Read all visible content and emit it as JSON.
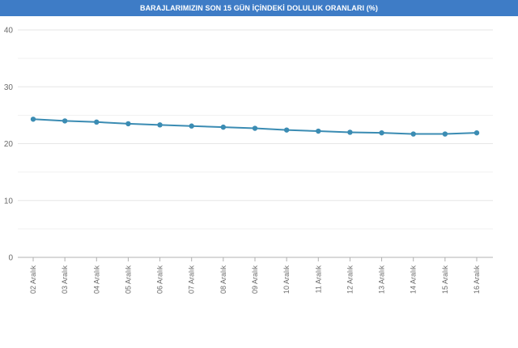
{
  "colors": {
    "header_bg": "#3e7cc6",
    "line": "#3b8cb3",
    "grid": "#e6e6e6",
    "axis": "#b0b0b0"
  },
  "chart_data": {
    "type": "line",
    "title": "BARAJLARIMIZIN SON 15 GÜN İÇİNDEKİ DOLULUK ORANLARI (%)",
    "xlabel": "",
    "ylabel": "",
    "ylim": [
      0,
      40
    ],
    "yticks": [
      0,
      10,
      20,
      30,
      40
    ],
    "grid": true,
    "categories": [
      "02 Aralık",
      "03 Aralık",
      "04 Aralık",
      "05 Aralık",
      "06 Aralık",
      "07 Aralık",
      "08 Aralık",
      "09 Aralık",
      "10 Aralık",
      "11 Aralık",
      "12 Aralık",
      "13 Aralık",
      "14 Aralık",
      "15 Aralık",
      "16 Aralık"
    ],
    "series": [
      {
        "values": [
          24.3,
          24.0,
          23.8,
          23.5,
          23.3,
          23.1,
          22.9,
          22.7,
          22.4,
          22.2,
          22.0,
          21.9,
          21.7,
          21.7,
          21.9
        ]
      }
    ]
  }
}
